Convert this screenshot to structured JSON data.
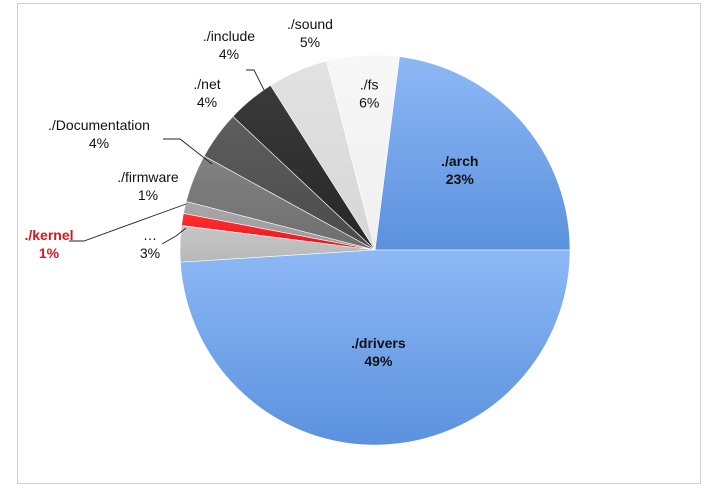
{
  "chart_data": {
    "type": "pie",
    "title": "",
    "start_angle_deg": 0,
    "direction": "counterclockwise",
    "slices": [
      {
        "label": "./arch",
        "percent_label": "23%",
        "value": 23,
        "color": "#5b91de",
        "color_light": "#8db8f5",
        "bold": true,
        "text_color": "#111111"
      },
      {
        "label": "./fs",
        "percent_label": "6%",
        "value": 6,
        "color": "#efefef",
        "color_light": "#f7f7f7",
        "bold": false,
        "text_color": "#111111"
      },
      {
        "label": "./sound",
        "percent_label": "5%",
        "value": 5,
        "color": "#d6d6d6",
        "color_light": "#e2e2e2",
        "bold": false,
        "text_color": "#111111"
      },
      {
        "label": "./include",
        "percent_label": "4%",
        "value": 4,
        "color": "#262626",
        "color_light": "#3a3a3a",
        "bold": false,
        "text_color": "#111111"
      },
      {
        "label": "./net",
        "percent_label": "4%",
        "value": 4,
        "color": "#4a4a4a",
        "color_light": "#5e5e5e",
        "bold": false,
        "text_color": "#111111"
      },
      {
        "label": "./Documentation",
        "percent_label": "4%",
        "value": 4,
        "color": "#6e6e6e",
        "color_light": "#828282",
        "bold": false,
        "text_color": "#111111"
      },
      {
        "label": "./firmware",
        "percent_label": "1%",
        "value": 1,
        "color": "#9a9a9a",
        "color_light": "#a8a8a8",
        "bold": false,
        "text_color": "#111111"
      },
      {
        "label": "./kernel",
        "percent_label": "1%",
        "value": 1,
        "color": "#e8141a",
        "color_light": "#ff3030",
        "bold": true,
        "text_color": "#e0141a"
      },
      {
        "label": "…",
        "percent_label": "3%",
        "value": 3,
        "color": "#b8b8b8",
        "color_light": "#c6c6c6",
        "bold": false,
        "text_color": "#111111"
      },
      {
        "label": "./drivers",
        "percent_label": "49%",
        "value": 49,
        "color": "#5b91de",
        "color_light": "#8db8f5",
        "bold": true,
        "text_color": "#111111"
      }
    ]
  }
}
